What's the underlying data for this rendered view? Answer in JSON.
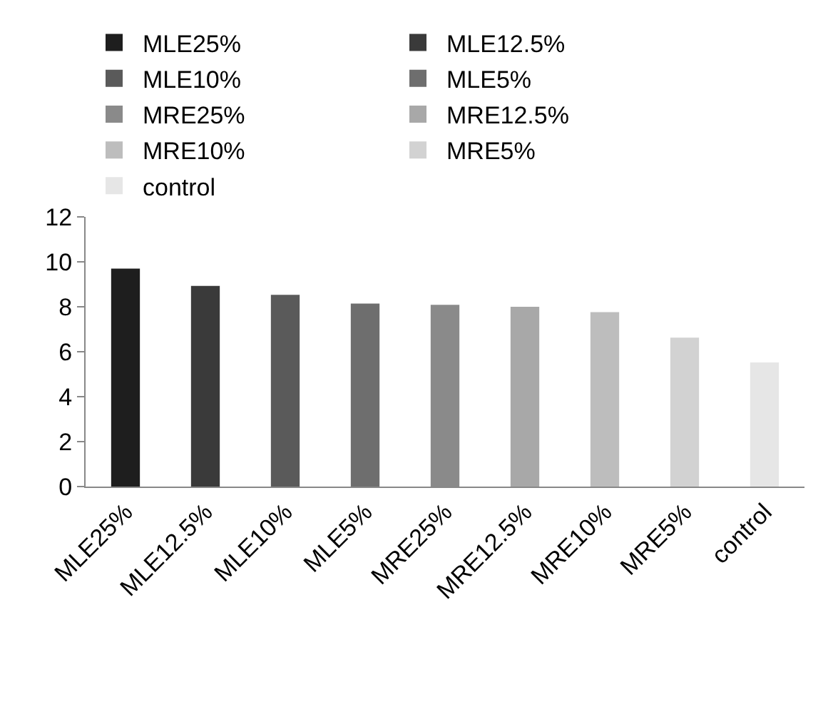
{
  "chart_data": {
    "type": "bar",
    "categories": [
      "MLE25%",
      "MLE12.5%",
      "MLE10%",
      "MLE5%",
      "MRE25%",
      "MRE12.5%",
      "MRE10%",
      "MRE5%",
      "control"
    ],
    "series": [
      {
        "name": "MLE25%",
        "color": "#1e1e1e",
        "values": [
          9.7,
          null,
          null,
          null,
          null,
          null,
          null,
          null,
          null
        ]
      },
      {
        "name": "MLE12.5%",
        "color": "#3a3a3a",
        "values": [
          null,
          8.93,
          null,
          null,
          null,
          null,
          null,
          null,
          null
        ]
      },
      {
        "name": "MLE10%",
        "color": "#5a5a5a",
        "values": [
          null,
          null,
          8.53,
          null,
          null,
          null,
          null,
          null,
          null
        ]
      },
      {
        "name": "MLE5%",
        "color": "#6e6e6e",
        "values": [
          null,
          null,
          null,
          8.14,
          null,
          null,
          null,
          null,
          null
        ]
      },
      {
        "name": "MRE25%",
        "color": "#8a8a8a",
        "values": [
          null,
          null,
          null,
          null,
          8.09,
          null,
          null,
          null,
          null
        ]
      },
      {
        "name": "MRE12.5%",
        "color": "#a8a8a8",
        "values": [
          null,
          null,
          null,
          null,
          null,
          8.0,
          null,
          null,
          null
        ]
      },
      {
        "name": "MRE10%",
        "color": "#bdbdbd",
        "values": [
          null,
          null,
          null,
          null,
          null,
          null,
          7.76,
          null,
          null
        ]
      },
      {
        "name": "MRE5%",
        "color": "#d2d2d2",
        "values": [
          null,
          null,
          null,
          null,
          null,
          null,
          null,
          6.63,
          null
        ]
      },
      {
        "name": "control",
        "color": "#e6e6e6",
        "values": [
          null,
          null,
          null,
          null,
          null,
          null,
          null,
          null,
          5.52
        ]
      }
    ],
    "ylim": [
      0,
      12
    ],
    "yticks": [
      0,
      2,
      4,
      6,
      8,
      10,
      12
    ],
    "grid": false,
    "legend": "top"
  }
}
